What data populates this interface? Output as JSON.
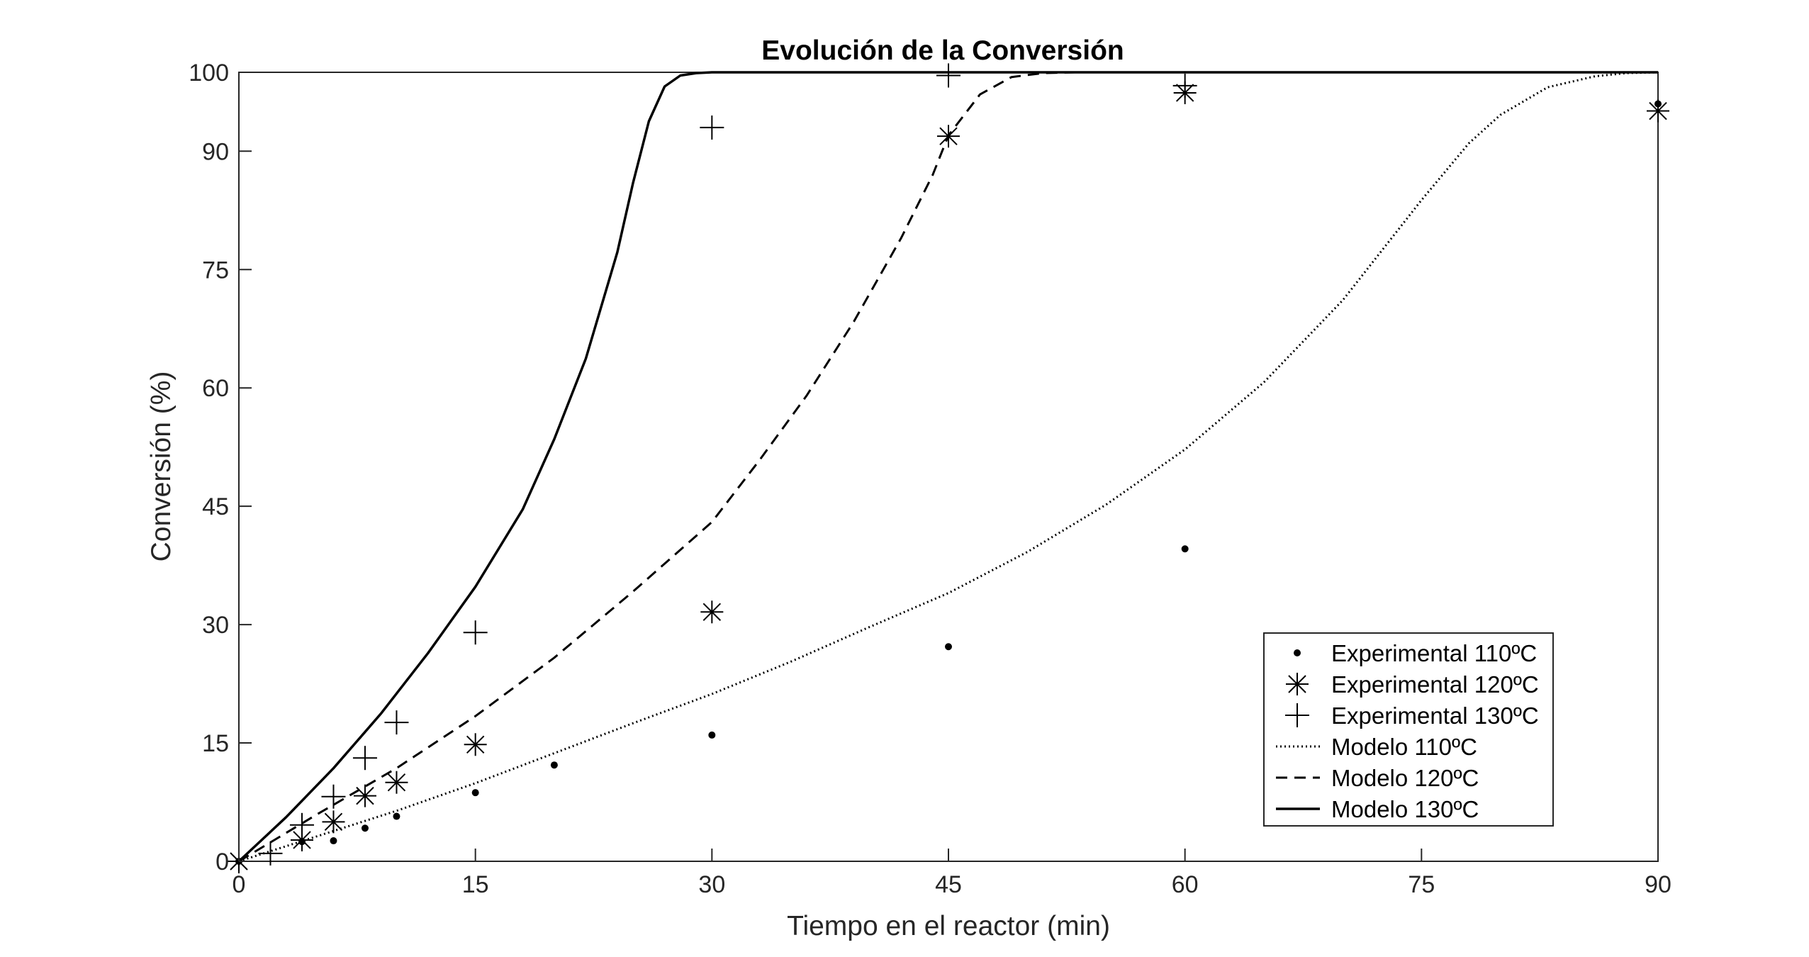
{
  "chart_data": {
    "type": "scatter",
    "title": "Evolución de la Conversión",
    "xlabel": "Tiempo en el reactor (min)",
    "ylabel": "Conversión (%)",
    "xlim": [
      0,
      90
    ],
    "ylim": [
      0,
      100
    ],
    "x_ticks": [
      0,
      15,
      30,
      45,
      60,
      75,
      90
    ],
    "y_ticks": [
      0,
      15,
      30,
      45,
      60,
      75,
      90,
      100
    ],
    "x_tick_labels": [
      "0",
      "15",
      "30",
      "45",
      "60",
      "75",
      "90"
    ],
    "y_tick_labels": [
      "0",
      "15",
      "30",
      "45",
      "60",
      "75",
      "90",
      "100"
    ],
    "grid": false,
    "legend_position": "bottom-right",
    "colors": {
      "ink": "#000000",
      "axis": "#262626",
      "background": "#ffffff"
    },
    "series": [
      {
        "name": "Experimental 110ºC",
        "kind": "scatter",
        "marker": "dot",
        "x": [
          0,
          4,
          6,
          8,
          10,
          15,
          20,
          30,
          45,
          60,
          90
        ],
        "y": [
          0,
          2.5,
          2.6,
          4.2,
          5.7,
          8.7,
          12.2,
          16.0,
          27.2,
          39.6,
          96.0
        ]
      },
      {
        "name": "Experimental 120ºC",
        "kind": "scatter",
        "marker": "asterisk",
        "x": [
          0,
          4,
          6,
          8,
          10,
          15,
          30,
          45,
          60,
          90
        ],
        "y": [
          0,
          2.7,
          5.0,
          8.3,
          10.0,
          14.8,
          31.6,
          91.9,
          97.4,
          95.1
        ]
      },
      {
        "name": "Experimental 130ºC",
        "kind": "scatter",
        "marker": "plus",
        "x": [
          0,
          2,
          4,
          6,
          8,
          10,
          15,
          30,
          45,
          60
        ],
        "y": [
          0,
          1.0,
          4.6,
          8.2,
          13.1,
          17.6,
          29.0,
          93.0,
          99.6,
          98.3
        ]
      },
      {
        "name": "Modelo 110ºC",
        "kind": "line",
        "dash": "dotted",
        "x": [
          0,
          5,
          10,
          15,
          20,
          25,
          30,
          35,
          40,
          45,
          50,
          55,
          60,
          65,
          70,
          75,
          78,
          80,
          83,
          86,
          88,
          90
        ],
        "y": [
          0,
          3.2,
          6.4,
          9.9,
          13.7,
          17.5,
          21.2,
          25.3,
          29.7,
          34.0,
          39.2,
          45.2,
          52.2,
          60.7,
          71.1,
          83.8,
          91.0,
          94.6,
          98.1,
          99.5,
          99.9,
          100
        ]
      },
      {
        "name": "Modelo 120ºC",
        "kind": "line",
        "dash": "dashed",
        "x": [
          0,
          5,
          10,
          15,
          20,
          25,
          30,
          33,
          36,
          39,
          42,
          44,
          45,
          47,
          49,
          51,
          53,
          90
        ],
        "y": [
          0,
          6.0,
          11.8,
          18.4,
          25.8,
          34.2,
          43.0,
          50.8,
          59.0,
          68.4,
          79.0,
          87.0,
          92.0,
          97.2,
          99.4,
          99.9,
          100,
          100
        ]
      },
      {
        "name": "Modelo 130ºC",
        "kind": "line",
        "dash": "solid",
        "x": [
          0,
          3,
          6,
          9,
          12,
          15,
          18,
          20,
          22,
          24,
          25,
          26,
          27,
          28,
          29,
          30,
          32,
          90
        ],
        "y": [
          0,
          5.6,
          11.8,
          18.7,
          26.4,
          34.8,
          44.6,
          53.5,
          63.7,
          77.2,
          86.0,
          93.8,
          98.2,
          99.6,
          99.9,
          100,
          100,
          100
        ]
      }
    ]
  }
}
